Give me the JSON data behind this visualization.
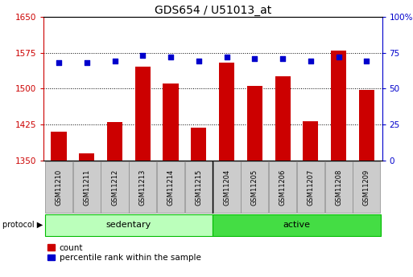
{
  "title": "GDS654 / U51013_at",
  "samples": [
    "GSM11210",
    "GSM11211",
    "GSM11212",
    "GSM11213",
    "GSM11214",
    "GSM11215",
    "GSM11204",
    "GSM11205",
    "GSM11206",
    "GSM11207",
    "GSM11208",
    "GSM11209"
  ],
  "counts": [
    1410,
    1365,
    1430,
    1545,
    1510,
    1418,
    1555,
    1505,
    1525,
    1432,
    1580,
    1498
  ],
  "percentile_ranks": [
    68,
    68,
    69,
    73,
    72,
    69,
    72,
    71,
    71,
    69,
    72,
    69
  ],
  "bar_color": "#cc0000",
  "dot_color": "#0000cc",
  "ylim_left": [
    1350,
    1650
  ],
  "ylim_right": [
    0,
    100
  ],
  "yticks_left": [
    1350,
    1425,
    1500,
    1575,
    1650
  ],
  "yticks_right": [
    0,
    25,
    50,
    75,
    100
  ],
  "sed_color": "#bbffbb",
  "act_color": "#44dd44",
  "group_border_color": "#00bb00",
  "label_box_color": "#cccccc",
  "background_color": "#ffffff",
  "title_fontsize": 10,
  "tick_fontsize": 7.5,
  "sample_fontsize": 6,
  "proto_fontsize": 8,
  "legend_fontsize": 7.5,
  "bar_width": 0.55
}
